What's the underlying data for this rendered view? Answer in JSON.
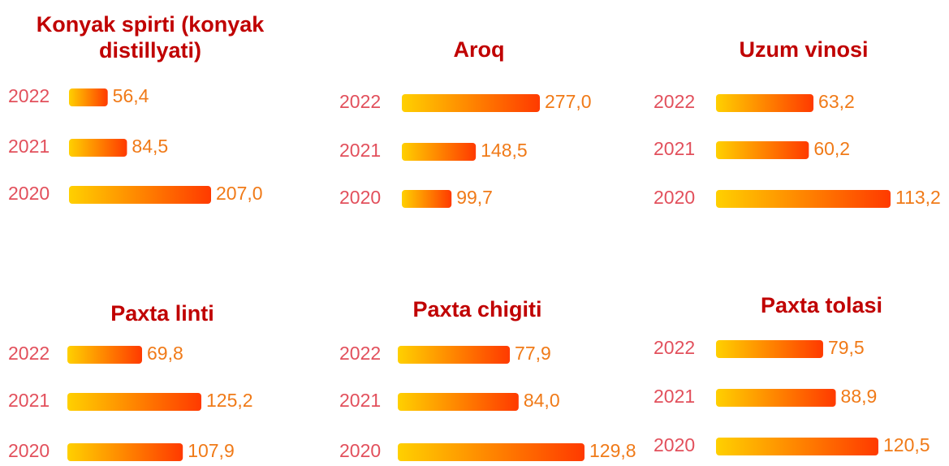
{
  "chart_data": [
    {
      "type": "bar",
      "title": "Konyak spirti (konyak distillyati)",
      "categories": [
        "2022",
        "2021",
        "2020"
      ],
      "values": [
        56.4,
        84.5,
        207.0
      ],
      "value_labels": [
        "56,4",
        "84,5",
        "207,0"
      ],
      "colors": [
        "#ffd000",
        "#ff3a00"
      ]
    },
    {
      "type": "bar",
      "title": "Aroq",
      "categories": [
        "2022",
        "2021",
        "2020"
      ],
      "values": [
        277.0,
        148.5,
        99.7
      ],
      "value_labels": [
        "277,0",
        "148,5",
        "99,7"
      ],
      "colors": [
        "#ffd000",
        "#ff3a00"
      ]
    },
    {
      "type": "bar",
      "title": "Uzum vinosi",
      "categories": [
        "2022",
        "2021",
        "2020"
      ],
      "values": [
        63.2,
        60.2,
        113.2
      ],
      "value_labels": [
        "63,2",
        "60,2",
        "113,2"
      ],
      "colors": [
        "#ffd000",
        "#ff3a00"
      ]
    },
    {
      "type": "bar",
      "title": "Paxta linti",
      "categories": [
        "2022",
        "2021",
        "2020"
      ],
      "values": [
        69.8,
        125.2,
        107.9
      ],
      "value_labels": [
        "69,8",
        "125,2",
        "107,9"
      ],
      "colors": [
        "#ffd000",
        "#ff3a00"
      ]
    },
    {
      "type": "bar",
      "title": "Paxta chigiti",
      "categories": [
        "2022",
        "2021",
        "2020"
      ],
      "values": [
        77.9,
        84.0,
        129.8
      ],
      "value_labels": [
        "77,9",
        "84,0",
        "129,8"
      ],
      "colors": [
        "#ffd000",
        "#ff3a00"
      ]
    },
    {
      "type": "bar",
      "title": "Paxta tolasi",
      "categories": [
        "2022",
        "2021",
        "2020"
      ],
      "values": [
        79.5,
        88.9,
        120.5
      ],
      "value_labels": [
        "79,5",
        "88,9",
        "120,5"
      ],
      "colors": [
        "#ffd000",
        "#ff3a00"
      ]
    }
  ]
}
